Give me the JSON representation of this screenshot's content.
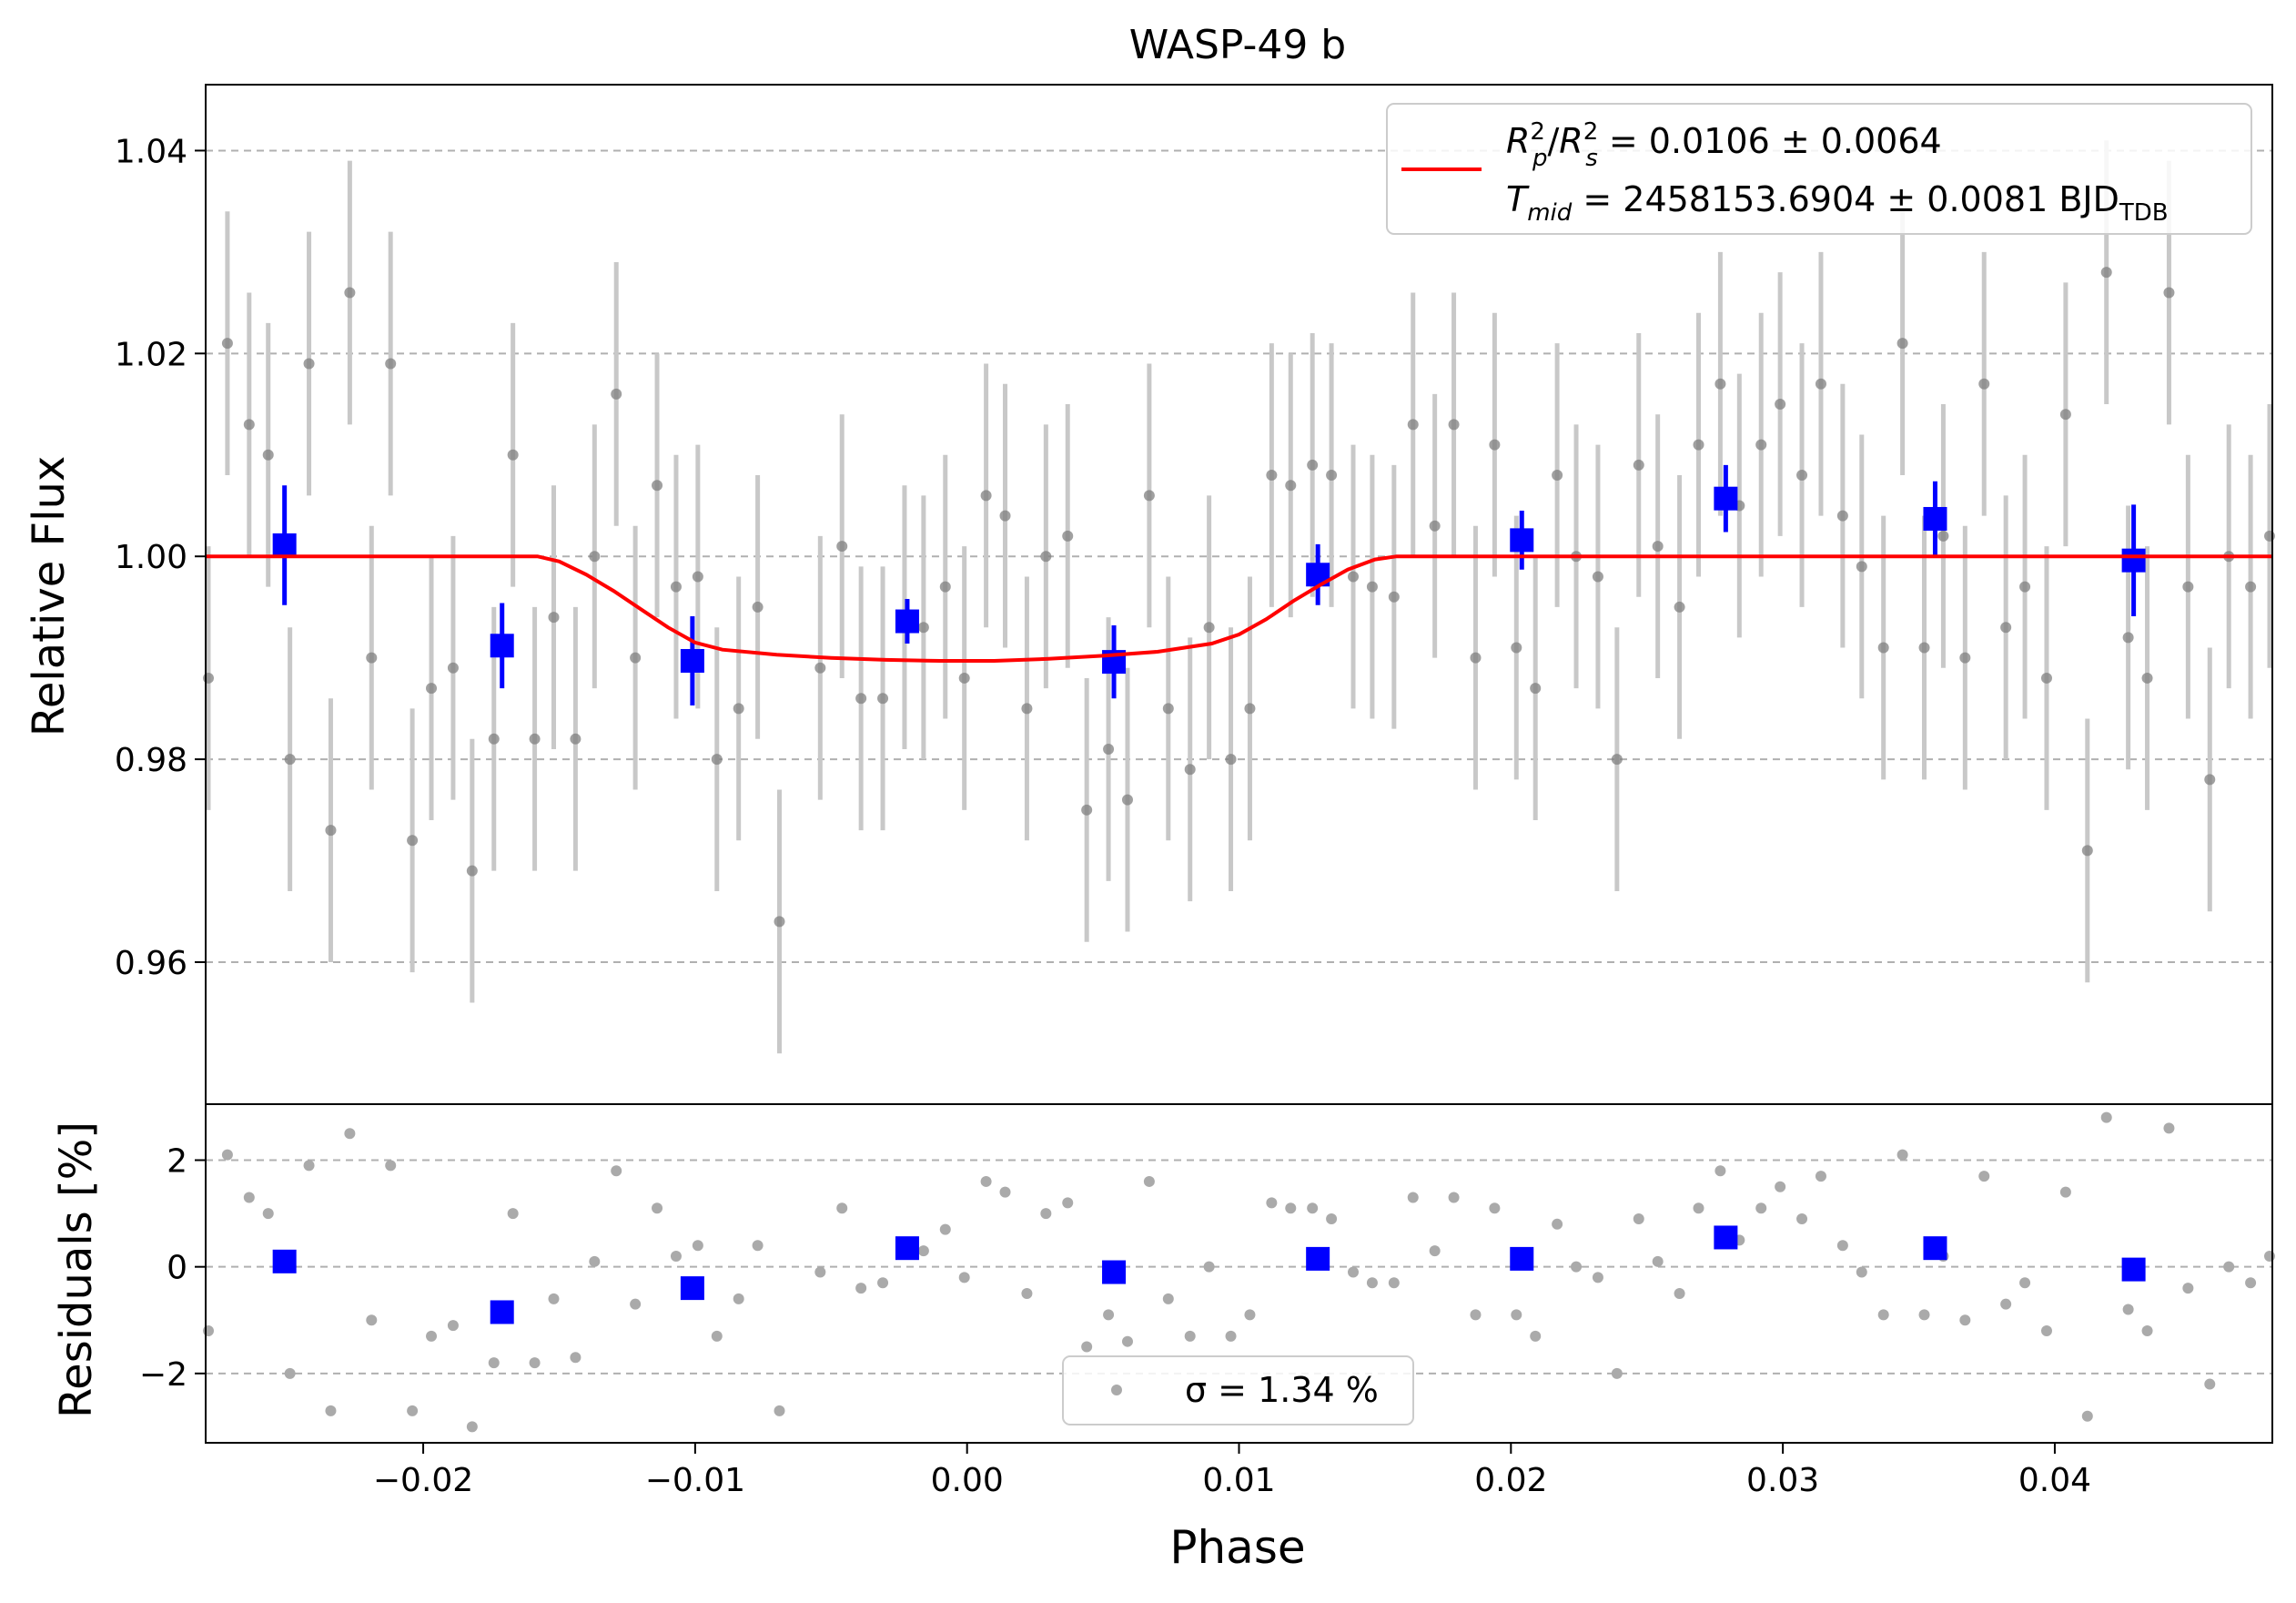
{
  "chart_data": [
    {
      "panel": "main",
      "type": "scatter",
      "title": "WASP-49 b",
      "xlabel": "",
      "ylabel": "Relative Flux",
      "xlim": [
        -0.028,
        0.048
      ],
      "ylim": [
        0.946,
        1.0465
      ],
      "yticks": [
        0.96,
        0.98,
        1.0,
        1.02,
        1.04
      ],
      "ytick_labels": [
        "0.96",
        "0.98",
        "1.00",
        "1.02",
        "1.04"
      ],
      "grid": "horizontal dashed",
      "legend": {
        "placement": "top-right",
        "label_line1": "R²p/R²s = 0.0106 ± 0.0064",
        "label_line2": "Tmid = 2458153.6904 ± 0.0081 BJDTDB"
      },
      "colors": {
        "raw": "#808080",
        "raw_err": "#c8c8c8",
        "binned": "#0000ff",
        "model": "#ff0000"
      },
      "series": [
        {
          "kind": "raw",
          "x": [
            -0.0279,
            -0.0272,
            -0.0264,
            -0.0257,
            -0.0249,
            -0.0242,
            -0.0234,
            -0.0227,
            -0.0219,
            -0.0212,
            -0.0204,
            -0.0197,
            -0.0189,
            -0.0182,
            -0.0174,
            -0.0167,
            -0.0159,
            -0.0152,
            -0.0144,
            -0.0137,
            -0.0129,
            -0.0122,
            -0.0114,
            -0.0107,
            -0.0099,
            -0.0092,
            -0.0084,
            -0.0077,
            -0.0069,
            -0.0054,
            -0.0046,
            -0.0039,
            -0.0031,
            -0.0023,
            -0.0016,
            -0.0008,
            -0.0001,
            0.0007,
            0.0014,
            0.0022,
            0.0029,
            0.0037,
            0.0044,
            0.0052,
            0.0059,
            0.0067,
            0.0074,
            0.0082,
            0.0089,
            0.0097,
            0.0104,
            0.0112,
            0.0119,
            0.0127,
            0.0134,
            0.0142,
            0.0149,
            0.0157,
            0.0164,
            0.0172,
            0.0179,
            0.0187,
            0.0194,
            0.0202,
            0.0209,
            0.0217,
            0.0224,
            0.0232,
            0.0239,
            0.0247,
            0.0254,
            0.0262,
            0.0269,
            0.0277,
            0.0284,
            0.0292,
            0.0299,
            0.0307,
            0.0314,
            0.0322,
            0.0329,
            0.0337,
            0.0344,
            0.0352,
            0.0359,
            0.0367,
            0.0374,
            0.0382,
            0.0389,
            0.0397,
            0.0404,
            0.0412,
            0.0419,
            0.0427,
            0.0434,
            0.0442,
            0.0449,
            0.0457,
            0.0464,
            0.0472,
            0.0479
          ],
          "y": [
            0.988,
            1.021,
            1.013,
            1.01,
            0.98,
            1.019,
            0.973,
            1.026,
            0.99,
            1.019,
            0.972,
            0.987,
            0.989,
            0.969,
            0.982,
            1.01,
            0.982,
            0.994,
            0.982,
            1.0,
            1.016,
            0.99,
            1.007,
            0.997,
            0.998,
            0.98,
            0.985,
            0.995,
            0.964,
            0.989,
            1.001,
            0.986,
            0.986,
            0.994,
            0.993,
            0.997,
            0.988,
            1.006,
            1.004,
            0.985,
            1.0,
            1.002,
            0.975,
            0.981,
            0.976,
            1.006,
            0.985,
            0.979,
            0.993,
            0.98,
            0.985,
            1.008,
            1.007,
            1.009,
            1.008,
            0.998,
            0.997,
            0.996,
            1.013,
            1.003,
            1.013,
            0.99,
            1.011,
            0.991,
            0.987,
            1.008,
            1.0,
            0.998,
            0.98,
            1.009,
            1.001,
            0.995,
            1.011,
            1.017,
            1.005,
            1.011,
            1.015,
            1.008,
            1.017,
            1.004,
            0.999,
            0.991,
            1.021,
            0.991,
            1.002,
            0.99,
            1.017,
            0.993,
            0.997,
            0.988,
            1.014,
            0.971,
            1.028,
            0.992,
            0.988,
            1.026,
            0.997,
            0.978,
            1.0,
            0.997,
            1.002
          ],
          "err": [
            0.013,
            0.013,
            0.013,
            0.013,
            0.013,
            0.013,
            0.013,
            0.013,
            0.013,
            0.013,
            0.013,
            0.013,
            0.013,
            0.013,
            0.013,
            0.013,
            0.013,
            0.013,
            0.013,
            0.013,
            0.013,
            0.013,
            0.013,
            0.013,
            0.013,
            0.013,
            0.013,
            0.013,
            0.013,
            0.013,
            0.013,
            0.013,
            0.013,
            0.013,
            0.013,
            0.013,
            0.013,
            0.013,
            0.013,
            0.013,
            0.013,
            0.013,
            0.013,
            0.013,
            0.013,
            0.013,
            0.013,
            0.013,
            0.013,
            0.013,
            0.013,
            0.013,
            0.013,
            0.013,
            0.013,
            0.013,
            0.013,
            0.013,
            0.013,
            0.013,
            0.013,
            0.013,
            0.013,
            0.013,
            0.013,
            0.013,
            0.013,
            0.013,
            0.013,
            0.013,
            0.013,
            0.013,
            0.013,
            0.013,
            0.013,
            0.013,
            0.013,
            0.013,
            0.013,
            0.013,
            0.013,
            0.013,
            0.013,
            0.013,
            0.013,
            0.013,
            0.013,
            0.013,
            0.013,
            0.013,
            0.013,
            0.013,
            0.013,
            0.013,
            0.013,
            0.013,
            0.013,
            0.013,
            0.013,
            0.013,
            0.013
          ]
        },
        {
          "kind": "binned",
          "x": [
            -0.0251,
            -0.0171,
            -0.0101,
            -0.0022,
            0.0054,
            0.0129,
            0.0204,
            0.0279,
            0.0356,
            0.0429
          ],
          "y": [
            1.0011,
            0.9912,
            0.9897,
            0.9936,
            0.9896,
            0.9982,
            1.0016,
            1.0057,
            1.0037,
            0.9996
          ],
          "err": [
            0.0059,
            0.0042,
            0.0044,
            0.0022,
            0.0036,
            0.003,
            0.0029,
            0.0033,
            0.0037,
            0.0055
          ]
        },
        {
          "kind": "model",
          "x": [
            -0.028,
            -0.0158,
            -0.015,
            -0.014,
            -0.013,
            -0.012,
            -0.011,
            -0.01,
            -0.009,
            -0.007,
            -0.005,
            -0.003,
            -0.001,
            0.001,
            0.003,
            0.005,
            0.007,
            0.009,
            0.01,
            0.011,
            0.012,
            0.013,
            0.014,
            0.015,
            0.0158,
            0.048
          ],
          "y": [
            1.0,
            1.0,
            0.9995,
            0.9982,
            0.9966,
            0.9948,
            0.993,
            0.9915,
            0.9908,
            0.9903,
            0.99,
            0.9898,
            0.9897,
            0.9897,
            0.9899,
            0.9902,
            0.9906,
            0.9914,
            0.9923,
            0.9938,
            0.9956,
            0.9972,
            0.9987,
            0.9997,
            1.0,
            1.0
          ]
        }
      ]
    },
    {
      "panel": "residuals",
      "type": "scatter",
      "xlabel": "Phase",
      "ylabel": "Residuals [%]",
      "xlim": [
        -0.028,
        0.048
      ],
      "ylim": [
        -3.3,
        3.05
      ],
      "xticks": [
        -0.02,
        -0.01,
        0.0,
        0.01,
        0.02,
        0.03,
        0.04
      ],
      "xtick_labels": [
        "−0.02",
        "−0.01",
        "0.00",
        "0.01",
        "0.02",
        "0.03",
        "0.04"
      ],
      "yticks": [
        -2,
        0,
        2
      ],
      "ytick_labels": [
        "−2",
        "0",
        "2"
      ],
      "grid": "horizontal dashed",
      "legend": {
        "placement": "bottom-center",
        "label": "σ = 1.34 %"
      },
      "series": [
        {
          "kind": "raw",
          "x": [
            -0.0279,
            -0.0272,
            -0.0264,
            -0.0257,
            -0.0249,
            -0.0242,
            -0.0234,
            -0.0227,
            -0.0219,
            -0.0212,
            -0.0204,
            -0.0197,
            -0.0189,
            -0.0182,
            -0.0174,
            -0.0167,
            -0.0159,
            -0.0152,
            -0.0144,
            -0.0137,
            -0.0129,
            -0.0122,
            -0.0114,
            -0.0107,
            -0.0099,
            -0.0092,
            -0.0084,
            -0.0077,
            -0.0069,
            -0.0054,
            -0.0046,
            -0.0039,
            -0.0031,
            -0.0023,
            -0.0016,
            -0.0008,
            -0.0001,
            0.0007,
            0.0014,
            0.0022,
            0.0029,
            0.0037,
            0.0044,
            0.0052,
            0.0059,
            0.0067,
            0.0074,
            0.0082,
            0.0089,
            0.0097,
            0.0104,
            0.0112,
            0.0119,
            0.0127,
            0.0134,
            0.0142,
            0.0149,
            0.0157,
            0.0164,
            0.0172,
            0.0179,
            0.0187,
            0.0194,
            0.0202,
            0.0209,
            0.0217,
            0.0224,
            0.0232,
            0.0239,
            0.0247,
            0.0254,
            0.0262,
            0.0269,
            0.0277,
            0.0284,
            0.0292,
            0.0299,
            0.0307,
            0.0314,
            0.0322,
            0.0329,
            0.0337,
            0.0344,
            0.0352,
            0.0359,
            0.0367,
            0.0374,
            0.0382,
            0.0389,
            0.0397,
            0.0404,
            0.0412,
            0.0419,
            0.0427,
            0.0434,
            0.0442,
            0.0449,
            0.0457,
            0.0464,
            0.0472,
            0.0479
          ],
          "y": [
            -1.2,
            2.1,
            1.3,
            1.0,
            -2.0,
            1.9,
            -2.7,
            2.5,
            -1.0,
            1.9,
            -2.7,
            -1.3,
            -1.1,
            -3.0,
            -1.8,
            1.0,
            -1.8,
            -0.6,
            -1.7,
            0.1,
            1.8,
            -0.7,
            1.1,
            0.2,
            0.4,
            -1.3,
            -0.6,
            0.4,
            -2.7,
            -0.1,
            1.1,
            -0.4,
            -0.3,
            0.3,
            0.3,
            0.7,
            -0.2,
            1.6,
            1.4,
            -0.5,
            1.0,
            1.2,
            -1.5,
            -0.9,
            -1.4,
            1.6,
            -0.6,
            -1.3,
            0.0,
            -1.3,
            -0.9,
            1.2,
            1.1,
            1.1,
            0.9,
            -0.1,
            -0.3,
            -0.3,
            1.3,
            0.3,
            1.3,
            -0.9,
            1.1,
            -0.9,
            -1.3,
            0.8,
            0.0,
            -0.2,
            -2.0,
            0.9,
            0.1,
            -0.5,
            1.1,
            1.8,
            0.5,
            1.1,
            1.5,
            0.9,
            1.7,
            0.4,
            -0.1,
            -0.9,
            2.1,
            -0.9,
            0.2,
            -1.0,
            1.7,
            -0.7,
            -0.3,
            -1.2,
            1.4,
            -2.8,
            2.8,
            -0.8,
            -1.2,
            2.6,
            -0.4,
            -2.2,
            0.0,
            -0.3,
            0.2
          ]
        },
        {
          "kind": "binned",
          "x": [
            -0.0251,
            -0.0171,
            -0.0101,
            -0.0022,
            0.0054,
            0.0129,
            0.0204,
            0.0279,
            0.0356,
            0.0429
          ],
          "y": [
            0.1,
            -0.85,
            -0.4,
            0.35,
            -0.1,
            0.15,
            0.15,
            0.55,
            0.35,
            -0.05
          ]
        }
      ]
    }
  ]
}
